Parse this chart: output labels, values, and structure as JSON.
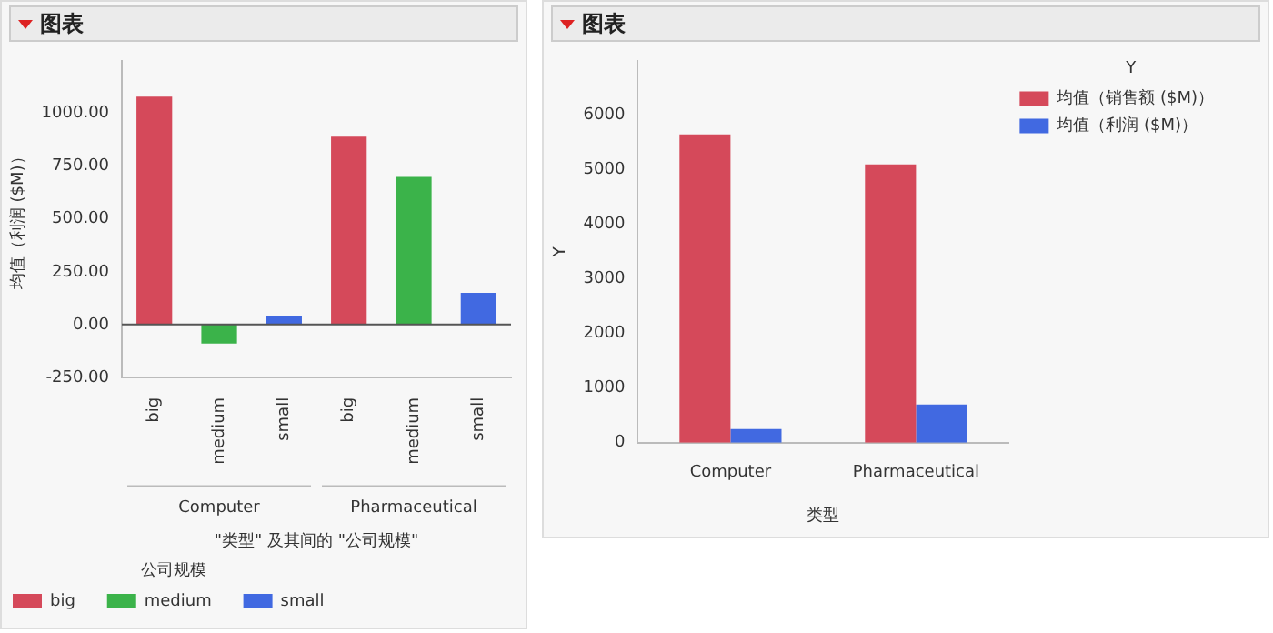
{
  "chart_data": [
    {
      "type": "bar",
      "title": "图表",
      "ylabel": "均值（利润 ($M)）",
      "xlabel": "\"类型\" 及其间的 \"公司规模\"",
      "legend_title": "公司规模",
      "legend": "bottom",
      "grid": false,
      "categories": [
        "big",
        "medium",
        "small",
        "big",
        "medium",
        "small"
      ],
      "annotations": [
        "Computer",
        "Pharmaceutical"
      ],
      "series": [
        {
          "name": "big",
          "color": "#d5495a",
          "values": [
            1080,
            null,
            null,
            890,
            null,
            null
          ]
        },
        {
          "name": "medium",
          "color": "#3bb34a",
          "values": [
            null,
            -90,
            null,
            null,
            700,
            null
          ]
        },
        {
          "name": "small",
          "color": "#4169e1",
          "values": [
            null,
            null,
            40,
            null,
            null,
            150
          ]
        }
      ],
      "ylim": [
        -250,
        1250
      ],
      "yticks": [
        {
          "value": -250,
          "label": "-250.00"
        },
        {
          "value": 0,
          "label": "0.00"
        },
        {
          "value": 250,
          "label": "250.00"
        },
        {
          "value": 500,
          "label": "500.00"
        },
        {
          "value": 750,
          "label": "750.00"
        },
        {
          "value": 1000,
          "label": "1000.00"
        }
      ],
      "ref_lines": [
        {
          "axis": "y",
          "value": 0,
          "color": "#555555"
        }
      ]
    },
    {
      "type": "bar",
      "title": "图表",
      "ylabel": "Y",
      "xlabel": "类型",
      "legend_title": "Y",
      "legend": "top right",
      "grid": false,
      "categories": [
        "Computer",
        "Pharmaceutical"
      ],
      "series": [
        {
          "name": "均值（销售额 ($M)）",
          "color": "#d5495a",
          "values": [
            5650,
            5100
          ]
        },
        {
          "name": "均值（利润 ($M)）",
          "color": "#4169e1",
          "values": [
            250,
            700
          ]
        }
      ],
      "ylim": [
        0,
        7000
      ],
      "yticks": [
        0,
        1000,
        2000,
        3000,
        4000,
        5000,
        6000
      ]
    }
  ]
}
